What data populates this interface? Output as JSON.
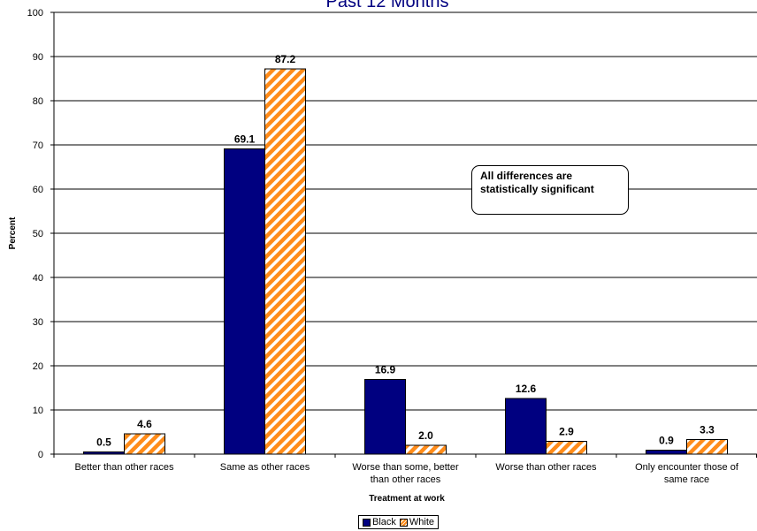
{
  "chart_data": {
    "type": "bar",
    "title": "Past 12 Months",
    "xlabel": "Treatment at work",
    "ylabel": "Percent",
    "ylim": [
      0,
      100
    ],
    "yticks": [
      0,
      10,
      20,
      30,
      40,
      50,
      60,
      70,
      80,
      90,
      100
    ],
    "grid": true,
    "legend_position": "bottom",
    "categories": [
      [
        "Better than other races"
      ],
      [
        "Same as other races"
      ],
      [
        "Worse than some, better",
        "than other races"
      ],
      [
        "Worse than other races"
      ],
      [
        "Only encounter those of",
        "same race"
      ]
    ],
    "series": [
      {
        "name": "Black",
        "values": [
          0.5,
          69.1,
          16.9,
          12.6,
          0.9
        ],
        "labels": [
          "0.5",
          "69.1",
          "16.9",
          "12.6",
          "0.9"
        ],
        "color": "#000080"
      },
      {
        "name": "White",
        "values": [
          4.6,
          87.2,
          2.0,
          2.9,
          3.3
        ],
        "labels": [
          "4.6",
          "87.2",
          "2.0",
          "2.9",
          "3.3"
        ],
        "color": "#ff8c1a"
      }
    ],
    "annotation": [
      "All differences are",
      "statistically significant"
    ]
  }
}
